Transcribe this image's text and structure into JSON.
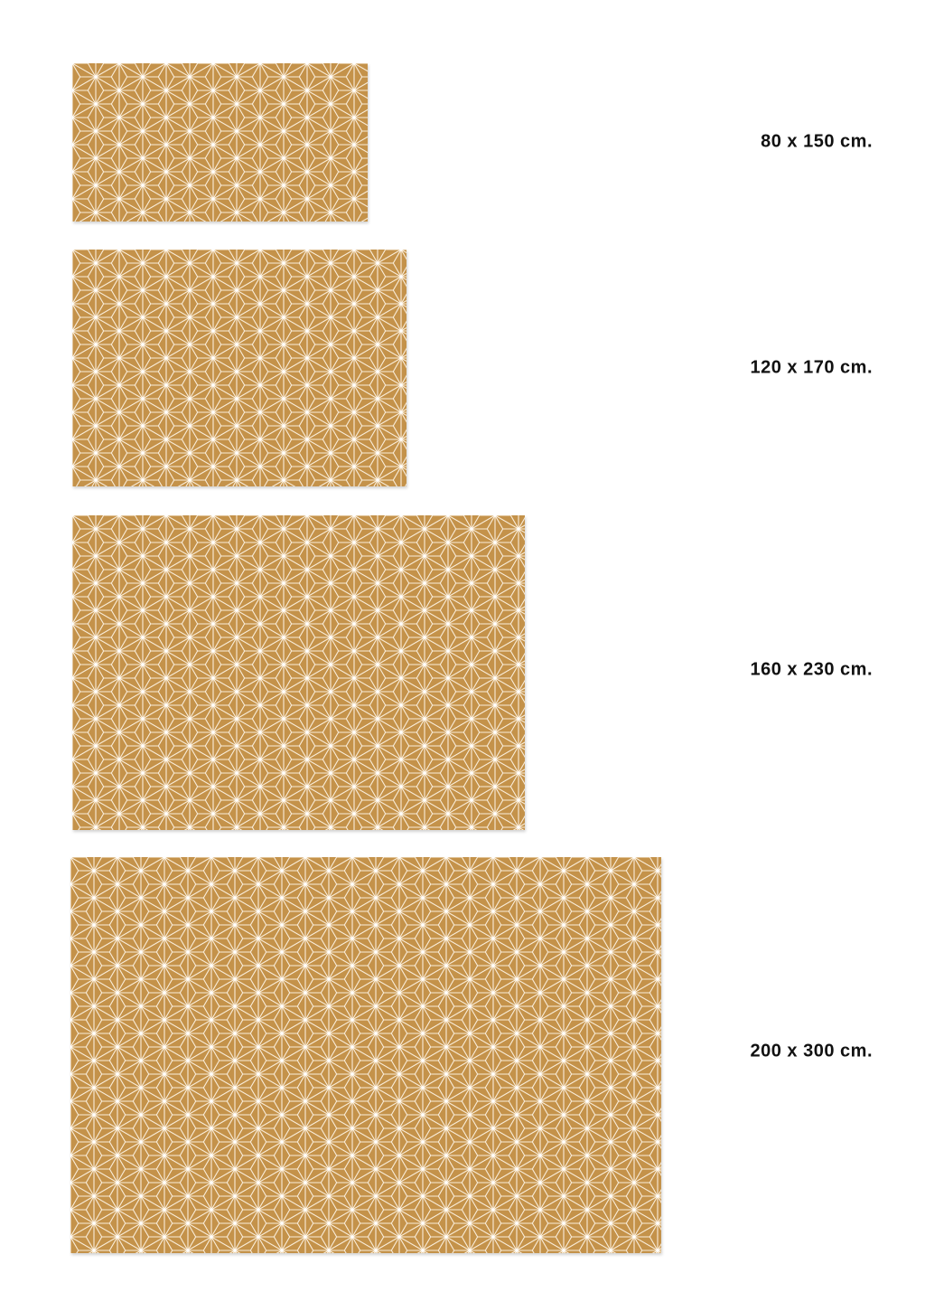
{
  "colors": {
    "rug_base": "#c4924a",
    "pattern_line": "#fff6e6"
  },
  "pattern": "asanoha-star-geometric",
  "sizes": [
    {
      "label": "80 x 150 cm."
    },
    {
      "label": "120 x 170 cm."
    },
    {
      "label": "160 x 230 cm."
    },
    {
      "label": "200 x 300 cm."
    }
  ]
}
